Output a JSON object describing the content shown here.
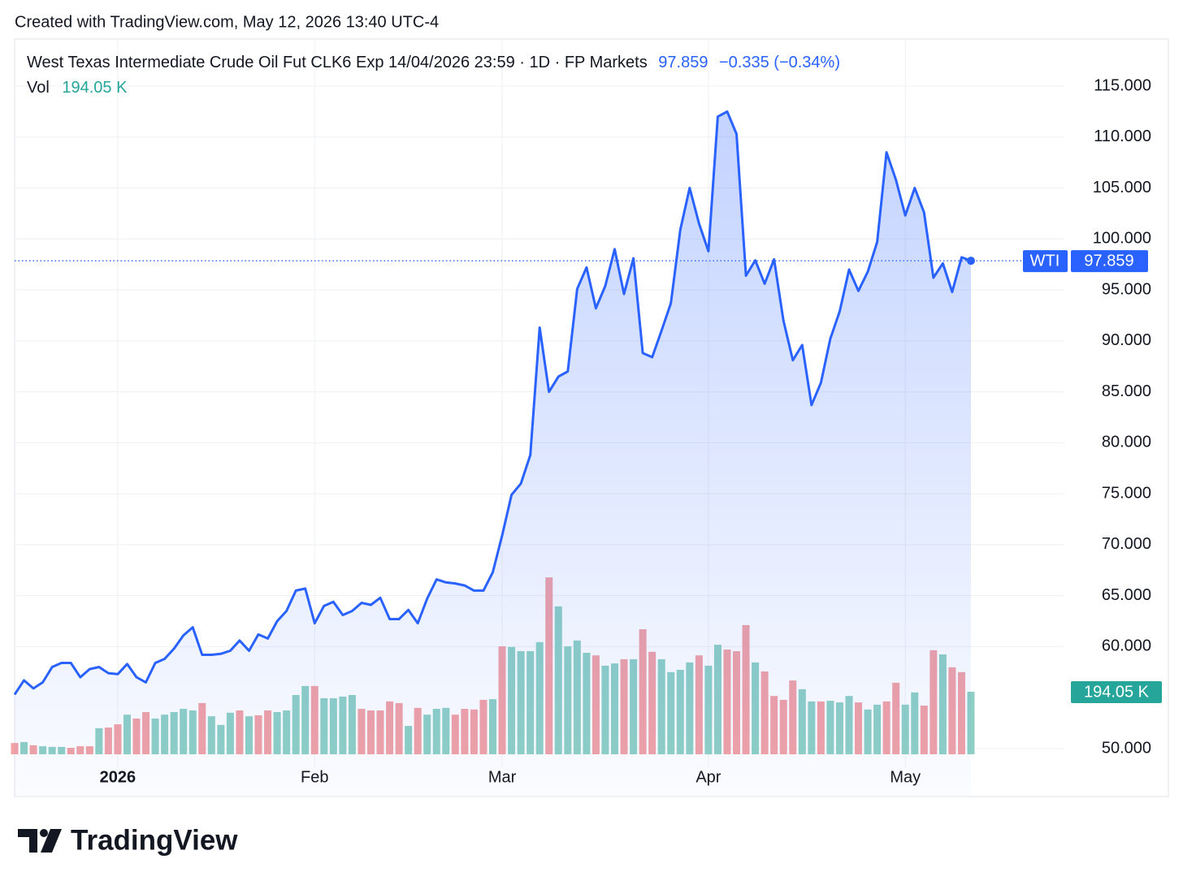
{
  "chart_data": {
    "type": "area",
    "header": "Created with TradingView.com, May 12, 2026 13:40 UTC-4",
    "title": "West Texas Intermediate Crude Oil Fut CLK6 Exp 14/04/2026 23:59 · 1D · FP Markets",
    "change": "−0.335 (−0.34%)",
    "brand": "TradingView",
    "categories": [
      null,
      null,
      null,
      null,
      null,
      null,
      null,
      null,
      null,
      null,
      null,
      "2026",
      null,
      null,
      null,
      null,
      null,
      null,
      null,
      null,
      null,
      null,
      null,
      null,
      null,
      null,
      null,
      null,
      null,
      null,
      null,
      null,
      "Feb",
      null,
      null,
      null,
      null,
      null,
      null,
      null,
      null,
      null,
      null,
      null,
      null,
      null,
      null,
      null,
      null,
      null,
      null,
      null,
      "Mar",
      null,
      null,
      null,
      null,
      null,
      null,
      null,
      null,
      null,
      null,
      null,
      null,
      null,
      null,
      null,
      null,
      null,
      null,
      null,
      null,
      null,
      "Apr",
      null,
      null,
      null,
      null,
      null,
      null,
      null,
      null,
      null,
      null,
      null,
      null,
      null,
      null,
      null,
      null,
      null,
      null,
      null,
      null,
      "May",
      null,
      null,
      null,
      null,
      null,
      null,
      null
    ],
    "ylim": [
      49.44,
      119.62
    ],
    "yticks": [
      {
        "value": 115,
        "label": "115.000"
      },
      {
        "value": 110,
        "label": "110.000"
      },
      {
        "value": 105,
        "label": "105.000"
      },
      {
        "value": 100,
        "label": "100.000"
      },
      {
        "value": 95,
        "label": "95.000"
      },
      {
        "value": 90,
        "label": "90.000"
      },
      {
        "value": 85,
        "label": "85.000"
      },
      {
        "value": 80,
        "label": "80.000"
      },
      {
        "value": 75,
        "label": "75.000"
      },
      {
        "value": 70,
        "label": "70.000"
      },
      {
        "value": 65,
        "label": "65.000"
      },
      {
        "value": 60,
        "label": "60.000"
      },
      {
        "value": 50,
        "label": "50.000"
      }
    ],
    "y2lim": [
      0,
      2220
    ],
    "grid": true,
    "series": [
      {
        "name": "WTI",
        "type": "area",
        "color": "#2962ff",
        "values": [
          55.3,
          56.7,
          55.9,
          56.5,
          58.0,
          58.4,
          58.4,
          57.0,
          57.8,
          58.0,
          57.4,
          57.3,
          58.3,
          57.0,
          56.5,
          58.4,
          58.8,
          59.8,
          61.1,
          61.9,
          59.2,
          59.2,
          59.3,
          59.6,
          60.6,
          59.6,
          61.2,
          60.8,
          62.5,
          63.5,
          65.5,
          65.7,
          62.3,
          64.0,
          64.4,
          63.1,
          63.5,
          64.3,
          64.1,
          64.8,
          62.7,
          62.7,
          63.6,
          62.3,
          64.7,
          66.6,
          66.3,
          66.2,
          66.0,
          65.5,
          65.5,
          67.3,
          70.9,
          74.9,
          76.0,
          78.8,
          91.3,
          85.0,
          86.5,
          87.0,
          95.1,
          97.2,
          93.2,
          95.4,
          99.0,
          94.6,
          98.1,
          88.8,
          88.4,
          91.0,
          93.7,
          100.9,
          105.0,
          101.5,
          98.8,
          112.0,
          112.5,
          110.3,
          96.4,
          97.9,
          95.6,
          98.0,
          92.0,
          88.1,
          89.6,
          83.7,
          85.9,
          90.2,
          92.9,
          97.0,
          94.9,
          96.8,
          99.7,
          108.5,
          105.8,
          102.3,
          105.0,
          102.6,
          96.2,
          97.6,
          94.8,
          98.2,
          97.859
        ]
      },
      {
        "name": "Vol",
        "type": "bar",
        "axis": "y2",
        "last_value_label": "194.05 K",
        "label_color": "#26a69a",
        "values": [
          35,
          38,
          28,
          25,
          23,
          23,
          20,
          25,
          25,
          81,
          83,
          93,
          123,
          111,
          131,
          111,
          123,
          131,
          141,
          136,
          159,
          118,
          91,
          129,
          136,
          118,
          121,
          136,
          131,
          136,
          184,
          212,
          212,
          174,
          174,
          179,
          184,
          141,
          136,
          136,
          164,
          159,
          88,
          144,
          123,
          141,
          144,
          123,
          141,
          139,
          169,
          171,
          335,
          333,
          320,
          320,
          348,
          549,
          459,
          335,
          353,
          315,
          307,
          275,
          282,
          295,
          295,
          388,
          318,
          295,
          255,
          262,
          285,
          307,
          275,
          340,
          325,
          320,
          401,
          285,
          257,
          181,
          169,
          229,
          202,
          164,
          164,
          166,
          161,
          181,
          161,
          139,
          154,
          164,
          222,
          154,
          192,
          151,
          323,
          310,
          270,
          255,
          194.05
        ],
        "colors": [
          "#f2a2a5",
          "#8fd0c5",
          "#f2a2a5",
          "#8fd0c5",
          "#8fd0c5",
          "#8fd0c5",
          "#f2a2a5",
          "#f2a2a5",
          "#f2a2a5",
          "#8fd0c5",
          "#f2a2a5",
          "#f2a2a5",
          "#8fd0c5",
          "#f2a2a5",
          "#f2a2a5",
          "#8fd0c5",
          "#8fd0c5",
          "#8fd0c5",
          "#8fd0c5",
          "#8fd0c5",
          "#f2a2a5",
          "#8fd0c5",
          "#8fd0c5",
          "#8fd0c5",
          "#f2a2a5",
          "#8fd0c5",
          "#f2a2a5",
          "#f2a2a5",
          "#8fd0c5",
          "#8fd0c5",
          "#8fd0c5",
          "#8fd0c5",
          "#f2a2a5",
          "#8fd0c5",
          "#8fd0c5",
          "#8fd0c5",
          "#8fd0c5",
          "#f2a2a5",
          "#f2a2a5",
          "#f2a2a5",
          "#f2a2a5",
          "#f2a2a5",
          "#8fd0c5",
          "#f2a2a5",
          "#8fd0c5",
          "#8fd0c5",
          "#8fd0c5",
          "#f2a2a5",
          "#f2a2a5",
          "#f2a2a5",
          "#f2a2a5",
          "#8fd0c5",
          "#f2a2a5",
          "#8fd0c5",
          "#8fd0c5",
          "#8fd0c5",
          "#8fd0c5",
          "#f2a2a5",
          "#8fd0c5",
          "#8fd0c5",
          "#8fd0c5",
          "#8fd0c5",
          "#f2a2a5",
          "#8fd0c5",
          "#8fd0c5",
          "#f2a2a5",
          "#8fd0c5",
          "#f2a2a5",
          "#f2a2a5",
          "#8fd0c5",
          "#8fd0c5",
          "#8fd0c5",
          "#8fd0c5",
          "#f2a2a5",
          "#8fd0c5",
          "#8fd0c5",
          "#f2a2a5",
          "#f2a2a5",
          "#f2a2a5",
          "#8fd0c5",
          "#f2a2a5",
          "#f2a2a5",
          "#f2a2a5",
          "#f2a2a5",
          "#8fd0c5",
          "#8fd0c5",
          "#f2a2a5",
          "#8fd0c5",
          "#8fd0c5",
          "#8fd0c5",
          "#f2a2a5",
          "#8fd0c5",
          "#8fd0c5",
          "#f2a2a5",
          "#f2a2a5",
          "#8fd0c5",
          "#8fd0c5",
          "#f2a2a5",
          "#f2a2a5",
          "#8fd0c5",
          "#f2a2a5",
          "#f2a2a5",
          "#8fd0c5"
        ]
      }
    ]
  }
}
